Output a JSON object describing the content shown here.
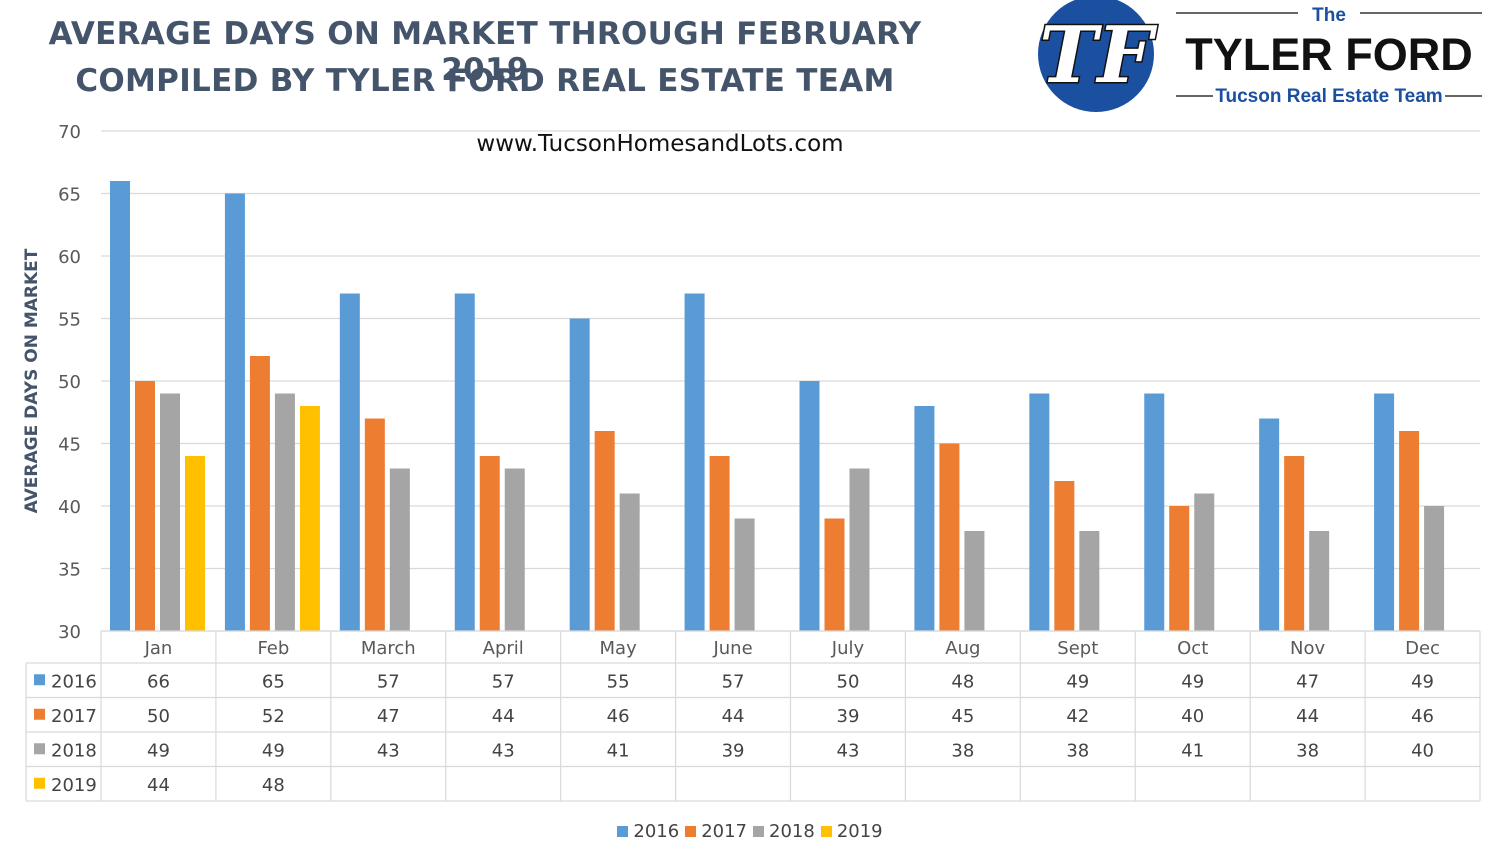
{
  "header": {
    "title_line1": "AVERAGE DAYS ON MARKET THROUGH FEBRUARY 2019",
    "title_line2": "COMPILED BY TYLER FORD REAL ESTATE TEAM",
    "website": "www.TucsonHomesandLots.com"
  },
  "logo": {
    "the": "The",
    "name": "TYLER FORD",
    "tagline": "Tucson Real Estate Team",
    "monogram": "TF",
    "circle_color": "#1b4fa0"
  },
  "chart_data": {
    "type": "bar",
    "title": "AVERAGE DAYS ON MARKET THROUGH FEBRUARY 2019",
    "ylabel": "AVERAGE DAYS ON MARKET",
    "xlabel": "",
    "ylim": [
      30,
      70
    ],
    "yticks": [
      30,
      35,
      40,
      45,
      50,
      55,
      60,
      65,
      70
    ],
    "grid": true,
    "legend_position": "bottom",
    "categories": [
      "Jan",
      "Feb",
      "March",
      "April",
      "May",
      "June",
      "July",
      "Aug",
      "Sept",
      "Oct",
      "Nov",
      "Dec"
    ],
    "series": [
      {
        "name": "2016",
        "color": "#5b9bd5",
        "values": [
          66,
          65,
          57,
          57,
          55,
          57,
          50,
          48,
          49,
          49,
          47,
          49
        ]
      },
      {
        "name": "2017",
        "color": "#ed7d31",
        "values": [
          50,
          52,
          47,
          44,
          46,
          44,
          39,
          45,
          42,
          40,
          44,
          46
        ]
      },
      {
        "name": "2018",
        "color": "#a5a5a5",
        "values": [
          49,
          49,
          43,
          43,
          41,
          39,
          43,
          38,
          38,
          41,
          38,
          40
        ]
      },
      {
        "name": "2019",
        "color": "#ffc000",
        "values": [
          44,
          48,
          null,
          null,
          null,
          null,
          null,
          null,
          null,
          null,
          null,
          null
        ]
      }
    ]
  }
}
